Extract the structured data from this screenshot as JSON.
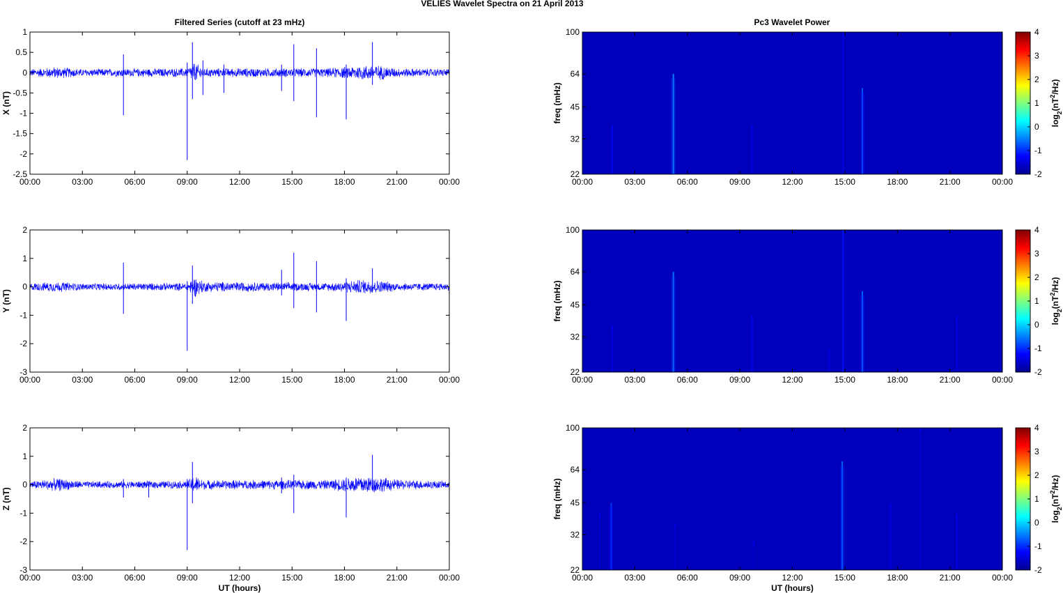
{
  "figure": {
    "suptitle": "VELIES Wavelet Spectra on 21 April     2013",
    "left_title": "Filtered Series (cutoff at 23 mHz)",
    "right_title": "Pc3 Wavelet Power"
  },
  "colors": {
    "signal": "#0000ff",
    "spectrum_bg": "#00009c",
    "axis": "#000000"
  },
  "chart_data": [
    {
      "type": "line",
      "ylabel": "X (nT)",
      "xlabel": "",
      "x_ticks": [
        "00:00",
        "03:00",
        "06:00",
        "09:00",
        "12:00",
        "15:00",
        "18:00",
        "21:00",
        "00:00"
      ],
      "xlim": [
        0,
        24
      ],
      "ylim": [
        -2.5,
        1
      ],
      "y_ticks": [
        {
          "v": 1,
          "t": "1"
        },
        {
          "v": 0.5,
          "t": "0.5"
        },
        {
          "v": 0,
          "t": "0"
        },
        {
          "v": -0.5,
          "t": "-0.5"
        },
        {
          "v": -1,
          "t": "-1"
        },
        {
          "v": -1.5,
          "t": "-1.5"
        },
        {
          "v": -2,
          "t": "-2"
        },
        {
          "v": -2.5,
          "t": "-2.5"
        }
      ],
      "noise_envelope": [
        {
          "x": 0,
          "amp": 0.1
        },
        {
          "x": 1.6,
          "amp": 0.16
        },
        {
          "x": 3,
          "amp": 0.1
        },
        {
          "x": 9,
          "amp": 0.12
        },
        {
          "x": 9.4,
          "amp": 0.28
        },
        {
          "x": 10,
          "amp": 0.12
        },
        {
          "x": 17,
          "amp": 0.12
        },
        {
          "x": 19,
          "amp": 0.2
        },
        {
          "x": 20,
          "amp": 0.2
        },
        {
          "x": 21,
          "amp": 0.12
        },
        {
          "x": 24,
          "amp": 0.1
        }
      ],
      "spikes": [
        {
          "x": 5.35,
          "min": -1.05,
          "max": 0.45
        },
        {
          "x": 9.0,
          "min": -2.15,
          "max": 0.25
        },
        {
          "x": 9.3,
          "min": -0.65,
          "max": 0.75
        },
        {
          "x": 9.9,
          "min": -0.55,
          "max": 0.3
        },
        {
          "x": 11.1,
          "min": -0.5,
          "max": 0.2
        },
        {
          "x": 14.4,
          "min": -0.45,
          "max": 0.2
        },
        {
          "x": 15.1,
          "min": -0.7,
          "max": 0.7
        },
        {
          "x": 16.4,
          "min": -1.1,
          "max": 0.6
        },
        {
          "x": 18.1,
          "min": -1.15,
          "max": 0.2
        },
        {
          "x": 19.6,
          "min": -0.3,
          "max": 0.75
        }
      ]
    },
    {
      "type": "line",
      "ylabel": "Y (nT)",
      "xlabel": "",
      "x_ticks": [
        "00:00",
        "03:00",
        "06:00",
        "09:00",
        "12:00",
        "15:00",
        "18:00",
        "21:00",
        "00:00"
      ],
      "xlim": [
        0,
        24
      ],
      "ylim": [
        -3,
        2
      ],
      "y_ticks": [
        {
          "v": 2,
          "t": "2"
        },
        {
          "v": 1,
          "t": "1"
        },
        {
          "v": 0,
          "t": "0"
        },
        {
          "v": -1,
          "t": "-1"
        },
        {
          "v": -2,
          "t": "-2"
        },
        {
          "v": -3,
          "t": "-3"
        }
      ],
      "noise_envelope": [
        {
          "x": 0,
          "amp": 0.14
        },
        {
          "x": 1.6,
          "amp": 0.2
        },
        {
          "x": 3,
          "amp": 0.13
        },
        {
          "x": 9,
          "amp": 0.15
        },
        {
          "x": 9.4,
          "amp": 0.4
        },
        {
          "x": 10,
          "amp": 0.2
        },
        {
          "x": 17,
          "amp": 0.15
        },
        {
          "x": 19,
          "amp": 0.28
        },
        {
          "x": 20,
          "amp": 0.25
        },
        {
          "x": 21,
          "amp": 0.15
        },
        {
          "x": 24,
          "amp": 0.14
        }
      ],
      "spikes": [
        {
          "x": 5.35,
          "min": -0.95,
          "max": 0.85
        },
        {
          "x": 9.0,
          "min": -2.25,
          "max": 0.2
        },
        {
          "x": 9.3,
          "min": -0.6,
          "max": 0.75
        },
        {
          "x": 14.4,
          "min": -0.3,
          "max": 0.6
        },
        {
          "x": 15.1,
          "min": -0.75,
          "max": 1.2
        },
        {
          "x": 16.4,
          "min": -0.9,
          "max": 0.9
        },
        {
          "x": 18.1,
          "min": -1.2,
          "max": 0.3
        },
        {
          "x": 19.6,
          "min": -0.2,
          "max": 0.65
        }
      ]
    },
    {
      "type": "line",
      "ylabel": "Z (nT)",
      "xlabel": "UT (hours)",
      "x_ticks": [
        "00:00",
        "03:00",
        "06:00",
        "09:00",
        "12:00",
        "15:00",
        "18:00",
        "21:00",
        "00:00"
      ],
      "xlim": [
        0,
        24
      ],
      "ylim": [
        -3,
        2
      ],
      "y_ticks": [
        {
          "v": 2,
          "t": "2"
        },
        {
          "v": 1,
          "t": "1"
        },
        {
          "v": 0,
          "t": "0"
        },
        {
          "v": -1,
          "t": "-1"
        },
        {
          "v": -2,
          "t": "-2"
        },
        {
          "v": -3,
          "t": "-3"
        }
      ],
      "noise_envelope": [
        {
          "x": 0,
          "amp": 0.14
        },
        {
          "x": 1.6,
          "amp": 0.25
        },
        {
          "x": 3,
          "amp": 0.13
        },
        {
          "x": 9,
          "amp": 0.15
        },
        {
          "x": 9.4,
          "amp": 0.35
        },
        {
          "x": 10,
          "amp": 0.18
        },
        {
          "x": 17,
          "amp": 0.18
        },
        {
          "x": 19,
          "amp": 0.35
        },
        {
          "x": 20,
          "amp": 0.3
        },
        {
          "x": 21,
          "amp": 0.2
        },
        {
          "x": 24,
          "amp": 0.14
        }
      ],
      "spikes": [
        {
          "x": 5.35,
          "min": -0.45,
          "max": 0.2
        },
        {
          "x": 6.8,
          "min": -0.45,
          "max": 0.1
        },
        {
          "x": 9.0,
          "min": -2.3,
          "max": 0.2
        },
        {
          "x": 9.3,
          "min": -0.65,
          "max": 0.8
        },
        {
          "x": 14.4,
          "min": -0.3,
          "max": 0.25
        },
        {
          "x": 15.1,
          "min": -1.0,
          "max": 0.35
        },
        {
          "x": 18.1,
          "min": -1.15,
          "max": 0.25
        },
        {
          "x": 19.6,
          "min": -0.2,
          "max": 1.05
        }
      ]
    },
    {
      "type": "heatmap",
      "ylabel": "freq (mHz)",
      "xlabel": "",
      "x_ticks": [
        "00:00",
        "03:00",
        "06:00",
        "09:00",
        "12:00",
        "15:00",
        "18:00",
        "21:00",
        "00:00"
      ],
      "xlim": [
        0,
        24
      ],
      "y_ticks": [
        "100",
        "64",
        "45",
        "32",
        "22"
      ],
      "colorbar_label": "log2(nT2/Hz)",
      "colorbar_ticks": [
        "4",
        "3",
        "2",
        "1",
        "0",
        "-1",
        "-2"
      ],
      "clim": [
        -2,
        4
      ],
      "background_value": -1.7,
      "streaks": [
        {
          "x": 1.7,
          "fmax": 37,
          "value": -1.2
        },
        {
          "x": 5.2,
          "fmax": 64,
          "value": -0.4
        },
        {
          "x": 9.7,
          "fmax": 37,
          "value": -1.3
        },
        {
          "x": 14.9,
          "fmax": 100,
          "value": -1.3
        },
        {
          "x": 16.0,
          "fmax": 55,
          "value": -0.7
        }
      ]
    },
    {
      "type": "heatmap",
      "ylabel": "freq (mHz)",
      "xlabel": "",
      "x_ticks": [
        "00:00",
        "03:00",
        "06:00",
        "09:00",
        "12:00",
        "15:00",
        "18:00",
        "21:00",
        "00:00"
      ],
      "xlim": [
        0,
        24
      ],
      "y_ticks": [
        "100",
        "64",
        "45",
        "32",
        "22"
      ],
      "colorbar_label": "log2(nT2/Hz)",
      "colorbar_ticks": [
        "4",
        "3",
        "2",
        "1",
        "0",
        "-1",
        "-2"
      ],
      "clim": [
        -2,
        4
      ],
      "background_value": -1.7,
      "streaks": [
        {
          "x": 1.7,
          "fmax": 36,
          "value": -1.3
        },
        {
          "x": 5.2,
          "fmax": 64,
          "value": -0.5
        },
        {
          "x": 9.7,
          "fmax": 40,
          "value": -1.2
        },
        {
          "x": 14.1,
          "fmax": 28,
          "value": -1.3
        },
        {
          "x": 14.9,
          "fmax": 100,
          "value": -1.1
        },
        {
          "x": 16.0,
          "fmax": 52,
          "value": -0.6
        },
        {
          "x": 21.4,
          "fmax": 40,
          "value": -1.3
        }
      ]
    },
    {
      "type": "heatmap",
      "ylabel": "freq (mHz)",
      "xlabel": "UT (hours)",
      "x_ticks": [
        "00:00",
        "03:00",
        "06:00",
        "09:00",
        "12:00",
        "15:00",
        "18:00",
        "21:00",
        "00:00"
      ],
      "xlim": [
        0,
        24
      ],
      "y_ticks": [
        "100",
        "64",
        "45",
        "32",
        "22"
      ],
      "colorbar_label": "log2(nT2/Hz)",
      "colorbar_ticks": [
        "4",
        "3",
        "2",
        "1",
        "0",
        "-1",
        "-2"
      ],
      "clim": [
        -2,
        4
      ],
      "background_value": -1.7,
      "streaks": [
        {
          "x": 1.0,
          "fmax": 40,
          "value": -1.4
        },
        {
          "x": 1.65,
          "fmax": 45,
          "value": -0.9
        },
        {
          "x": 5.3,
          "fmax": 36,
          "value": -1.4
        },
        {
          "x": 9.8,
          "fmax": 30,
          "value": -1.4
        },
        {
          "x": 14.85,
          "fmax": 70,
          "value": -0.6
        },
        {
          "x": 17.6,
          "fmax": 45,
          "value": -1.3
        },
        {
          "x": 19.3,
          "fmax": 100,
          "value": -1.4
        },
        {
          "x": 21.4,
          "fmax": 40,
          "value": -1.3
        }
      ]
    }
  ]
}
